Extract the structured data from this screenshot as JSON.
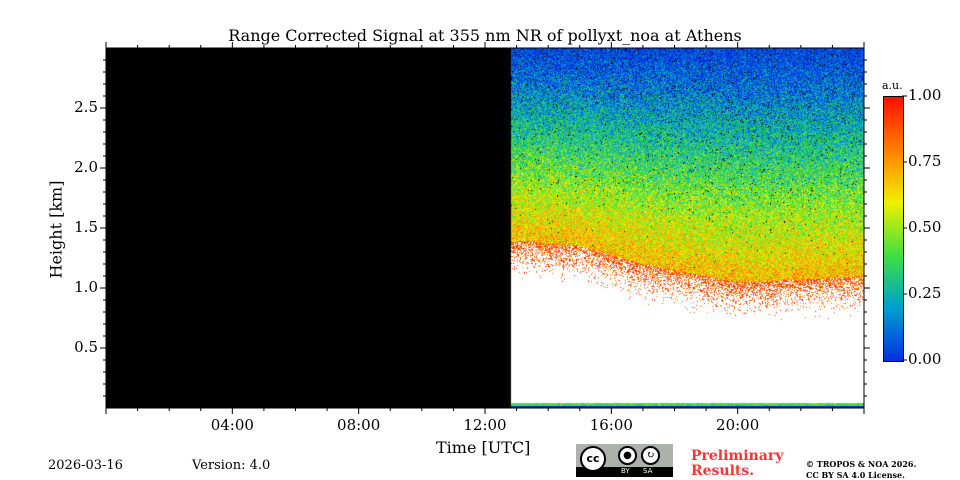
{
  "footer": {
    "date": "2026-03-16",
    "version": "Version: 4.0",
    "preliminary_line1": "Preliminary",
    "preliminary_line2": "Results.",
    "copyright": "© TROPOS & NOA 2026.",
    "license": "CC BY SA 4.0 License.",
    "cc_badge": {
      "cc": "cc",
      "by": "BY",
      "sa": "SA"
    }
  },
  "chart_data": {
    "type": "heatmap",
    "title": "Range Corrected Signal at 355 nm NR of pollyxt_noa at Athens",
    "xlabel": "Time [UTC]",
    "ylabel": "Height [km]",
    "xlim_hours": [
      0,
      24
    ],
    "ylim_km": [
      0,
      3.0
    ],
    "xticks": [
      {
        "v": 4,
        "label": "04:00"
      },
      {
        "v": 8,
        "label": "08:00"
      },
      {
        "v": 12,
        "label": "12:00"
      },
      {
        "v": 16,
        "label": "16:00"
      },
      {
        "v": 20,
        "label": "20:00"
      }
    ],
    "yticks": [
      {
        "v": 0.5,
        "label": "0.5"
      },
      {
        "v": 1.0,
        "label": "1.0"
      },
      {
        "v": 1.5,
        "label": "1.5"
      },
      {
        "v": 2.0,
        "label": "2.0"
      },
      {
        "v": 2.5,
        "label": "2.5"
      }
    ],
    "no_data_until_hours": 12.8,
    "saturation_top_km": [
      {
        "t": 12.8,
        "h": 1.4
      },
      {
        "t": 15,
        "h": 1.35
      },
      {
        "t": 17,
        "h": 1.2
      },
      {
        "t": 20,
        "h": 1.05
      },
      {
        "t": 24,
        "h": 1.1
      }
    ],
    "colorbar": {
      "label": "a.u.",
      "range": [
        0,
        1
      ],
      "ticks": [
        {
          "v": 0,
          "label": "0.00"
        },
        {
          "v": 0.25,
          "label": "0.25"
        },
        {
          "v": 0.5,
          "label": "0.50"
        },
        {
          "v": 0.75,
          "label": "0.75"
        },
        {
          "v": 1,
          "label": "1.00"
        }
      ],
      "colormap": [
        "#0033dd",
        "#00a0d0",
        "#40e040",
        "#f0f000",
        "#ff8000",
        "#ff1000"
      ]
    }
  }
}
